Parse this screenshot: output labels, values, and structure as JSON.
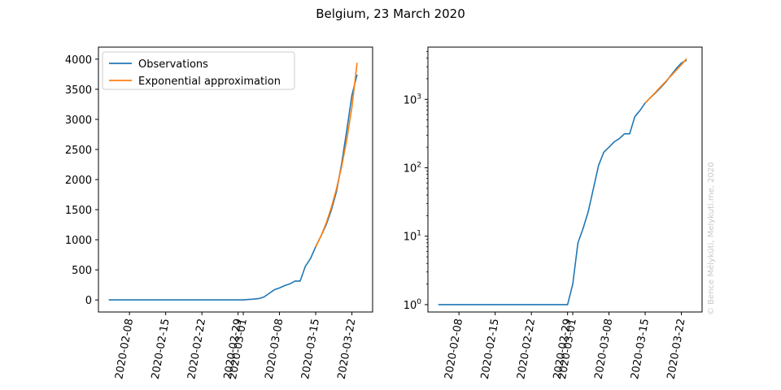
{
  "figure": {
    "title": "Belgium, 23 March 2020",
    "watermark": "© Bence Mélykúti, Melykuti.me, 2020"
  },
  "chart_data": [
    {
      "type": "line",
      "scale": "linear",
      "xlim": [
        "2020-02-02",
        "2020-03-26"
      ],
      "ylim": [
        -200,
        4200
      ],
      "x_ticks": [
        "2020-02-08",
        "2020-02-15",
        "2020-02-22",
        "2020-02-29",
        "2020-03-01",
        "2020-03-08",
        "2020-03-15",
        "2020-03-22"
      ],
      "y_ticks": [
        0,
        500,
        1000,
        1500,
        2000,
        2500,
        3000,
        3500,
        4000
      ],
      "grid": false,
      "legend": "top-left",
      "series": [
        {
          "name": "Observations",
          "color": "#1f77b4",
          "points": [
            [
              "2020-02-04",
              1
            ],
            [
              "2020-02-29",
              1
            ],
            [
              "2020-03-01",
              2
            ],
            [
              "2020-03-02",
              8
            ],
            [
              "2020-03-03",
              13
            ],
            [
              "2020-03-04",
              23
            ],
            [
              "2020-03-05",
              50
            ],
            [
              "2020-03-06",
              109
            ],
            [
              "2020-03-07",
              169
            ],
            [
              "2020-03-08",
              200
            ],
            [
              "2020-03-09",
              239
            ],
            [
              "2020-03-10",
              267
            ],
            [
              "2020-03-11",
              314
            ],
            [
              "2020-03-12",
              314
            ],
            [
              "2020-03-13",
              559
            ],
            [
              "2020-03-14",
              689
            ],
            [
              "2020-03-15",
              886
            ],
            [
              "2020-03-16",
              1058
            ],
            [
              "2020-03-17",
              1243
            ],
            [
              "2020-03-18",
              1486
            ],
            [
              "2020-03-19",
              1795
            ],
            [
              "2020-03-20",
              2257
            ],
            [
              "2020-03-21",
              2815
            ],
            [
              "2020-03-22",
              3401
            ],
            [
              "2020-03-23",
              3743
            ]
          ]
        },
        {
          "name": "Exponential approximation",
          "color": "#ff7f0e",
          "points": [
            [
              "2020-03-15",
              880
            ],
            [
              "2020-03-16",
              1060
            ],
            [
              "2020-03-17",
              1270
            ],
            [
              "2020-03-18",
              1530
            ],
            [
              "2020-03-19",
              1840
            ],
            [
              "2020-03-20",
              2210
            ],
            [
              "2020-03-21",
              2660
            ],
            [
              "2020-03-22",
              3200
            ],
            [
              "2020-03-23",
              3940
            ]
          ]
        }
      ]
    },
    {
      "type": "line",
      "scale": "log",
      "xlim": [
        "2020-02-02",
        "2020-03-26"
      ],
      "ylim": [
        0.78,
        5800
      ],
      "x_ticks": [
        "2020-02-08",
        "2020-02-15",
        "2020-02-22",
        "2020-02-29",
        "2020-03-01",
        "2020-03-08",
        "2020-03-15",
        "2020-03-22"
      ],
      "y_ticks": [
        1,
        10,
        100,
        1000
      ],
      "y_tick_labels": [
        [
          "10",
          "0"
        ],
        [
          "10",
          "1"
        ],
        [
          "10",
          "2"
        ],
        [
          "10",
          "3"
        ]
      ],
      "grid": false,
      "series": [
        {
          "name": "Observations",
          "color": "#1f77b4",
          "same_as_left": true
        },
        {
          "name": "Exponential approximation",
          "color": "#ff7f0e",
          "same_as_left": true
        }
      ]
    }
  ]
}
